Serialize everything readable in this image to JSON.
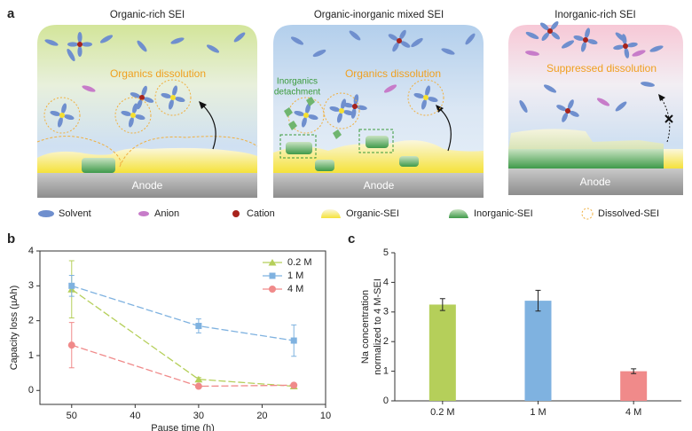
{
  "panel_labels": [
    "a",
    "b",
    "c"
  ],
  "schematic": {
    "panels": [
      {
        "title": "Organic-rich SEI",
        "annotations": [
          "Organics dissolution"
        ],
        "anode": "Anode"
      },
      {
        "title": "Organic-inorganic mixed SEI",
        "annotations": [
          "Organics dissolution",
          "Inorganics",
          "detachment"
        ],
        "anode": "Anode"
      },
      {
        "title": "Inorganic-rich SEI",
        "annotations": [
          "Suppressed dissolution"
        ],
        "anode": "Anode"
      }
    ],
    "legend": [
      "Solvent",
      "Anion",
      "Cation",
      "Organic-SEI",
      "Inorganic-SEI",
      "Dissolved-SEI"
    ]
  },
  "chart_data": [
    {
      "type": "line",
      "xlabel": "Pause time (h)",
      "ylabel": "Capacity loss (µAh)",
      "x": [
        50,
        30,
        15
      ],
      "xlim": [
        55,
        10
      ],
      "xticks": [
        50,
        40,
        30,
        20,
        10
      ],
      "ylim": [
        -0.4,
        4
      ],
      "yticks": [
        0,
        1,
        2,
        3,
        4
      ],
      "legend": "upper right",
      "series": [
        {
          "name": "0.2 M",
          "color": "#b5cf5a",
          "marker": "triangle",
          "values": [
            2.9,
            0.32,
            0.12
          ],
          "errors": [
            0.82,
            0.05,
            0.03
          ]
        },
        {
          "name": "1 M",
          "color": "#7fb2e0",
          "marker": "square",
          "values": [
            3.0,
            1.85,
            1.43
          ],
          "errors": [
            0.3,
            0.2,
            0.45
          ]
        },
        {
          "name": "4 M",
          "color": "#f08a8a",
          "marker": "circle",
          "values": [
            1.3,
            0.12,
            0.15
          ],
          "errors": [
            0.65,
            0.05,
            0.05
          ]
        }
      ]
    },
    {
      "type": "bar",
      "ylabel": [
        "Na concentration",
        "normalized to 4 M-SEI"
      ],
      "categories": [
        "0.2 M",
        "1 M",
        "4 M"
      ],
      "values": [
        3.25,
        3.38,
        1.0
      ],
      "errors": [
        0.2,
        0.35,
        0.08
      ],
      "colors": [
        "#b5cf5a",
        "#7fb2e0",
        "#f08a8a"
      ],
      "ylim": [
        0,
        5
      ],
      "yticks": [
        0,
        1,
        2,
        3,
        4,
        5
      ]
    }
  ]
}
